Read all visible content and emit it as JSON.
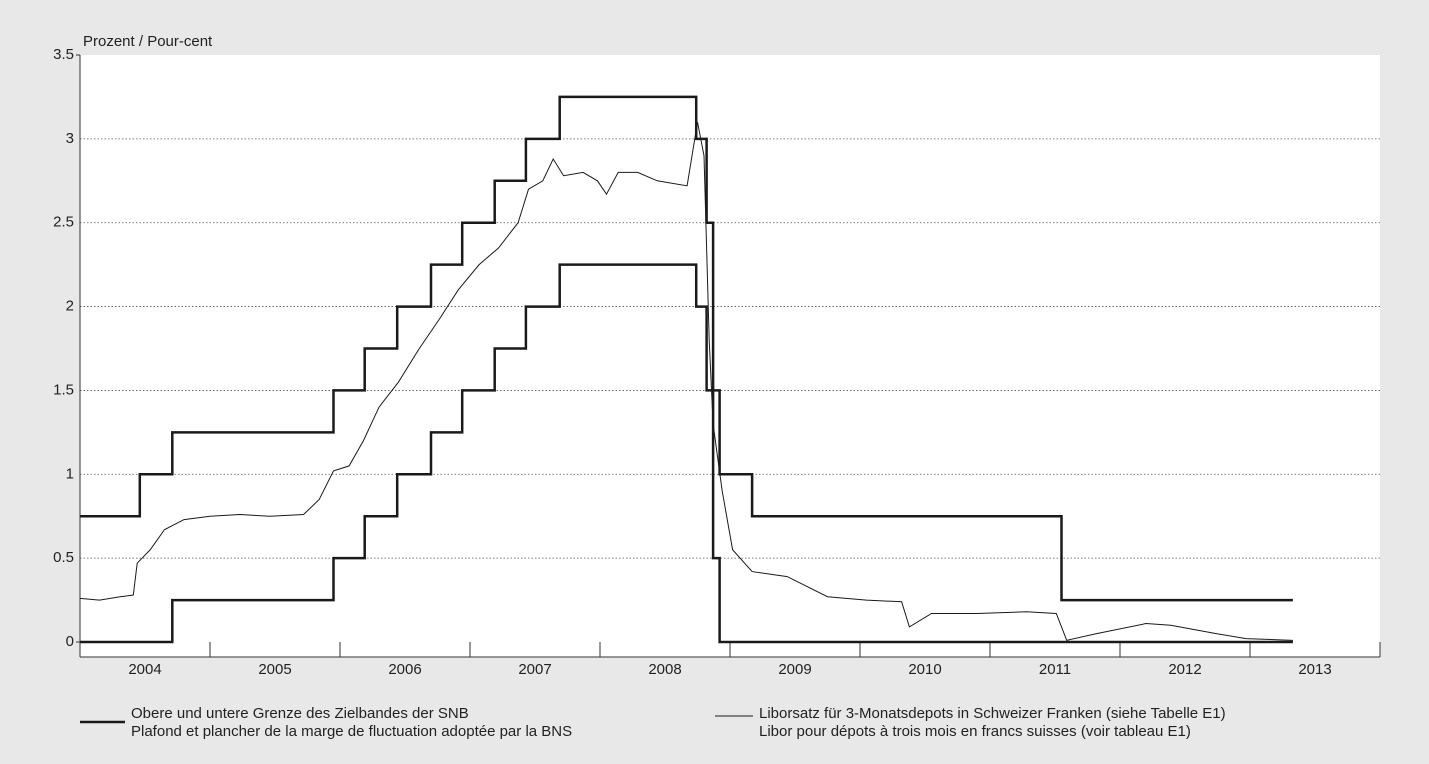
{
  "chart_data": {
    "type": "line",
    "y_label": "Prozent / Pour-cent",
    "xlim": [
      2004,
      2014
    ],
    "xticks": [
      2004,
      2005,
      2006,
      2007,
      2008,
      2009,
      2010,
      2011,
      2012,
      2013
    ],
    "ylim": [
      0,
      3.5
    ],
    "yticks": [
      0,
      0.5,
      1,
      1.5,
      2,
      2.5,
      3,
      3.5
    ],
    "grid": true,
    "series": [
      {
        "name": [
          "Obere und untere Grenze des Zielbandes der SNB",
          "Plafond et plancher de la marge de fluctuation adoptée par la BNS"
        ],
        "color": "#1a1a1a",
        "step": true,
        "x": [
          2004,
          2004.46,
          2004.71,
          2005.95,
          2006.19,
          2006.44,
          2006.7,
          2006.94,
          2007.19,
          2007.43,
          2007.69,
          2008.74,
          2008.82,
          2008.87,
          2008.92,
          2009.17,
          2011.55,
          2013.33
        ],
        "values": [
          0.75,
          1,
          1.25,
          1.5,
          1.75,
          2,
          2.25,
          2.5,
          2.75,
          3,
          3.25,
          3,
          2.5,
          1.5,
          1,
          0.75,
          0.25,
          0.25
        ],
        "lower": [
          0,
          0,
          0.25,
          0.5,
          0.75,
          1,
          1.25,
          1.5,
          1.75,
          2,
          2.25,
          2,
          1.5,
          0.5,
          0,
          0,
          0,
          0
        ]
      },
      {
        "name": [
          "Liborsatz für 3-Monatsdepots in Schweizer Franken (siehe Tabelle E1)",
          "Libor pour dépots à trois mois en francs suisses (voir tableau E1)"
        ],
        "color": "#1a1a1a",
        "step": false,
        "x": [
          2004.0,
          2004.15,
          2004.31,
          2004.41,
          2004.44,
          2004.54,
          2004.65,
          2004.8,
          2005.0,
          2005.23,
          2005.46,
          2005.72,
          2005.84,
          2005.95,
          2006.07,
          2006.18,
          2006.3,
          2006.45,
          2006.61,
          2006.76,
          2006.91,
          2007.07,
          2007.22,
          2007.37,
          2007.45,
          2007.56,
          2007.64,
          2007.72,
          2007.87,
          2007.98,
          2008.05,
          2008.14,
          2008.29,
          2008.44,
          2008.67,
          2008.75,
          2008.8,
          2008.84,
          2008.87,
          2008.94,
          2009.02,
          2009.17,
          2009.44,
          2009.75,
          2010.05,
          2010.32,
          2010.38,
          2010.55,
          2010.9,
          2011.28,
          2011.51,
          2011.59,
          2011.82,
          2012.2,
          2012.39,
          2012.74,
          2012.97,
          2013.33
        ],
        "values": [
          0.26,
          0.25,
          0.27,
          0.28,
          0.47,
          0.55,
          0.67,
          0.73,
          0.75,
          0.76,
          0.75,
          0.76,
          0.85,
          1.02,
          1.05,
          1.2,
          1.4,
          1.55,
          1.75,
          1.92,
          2.1,
          2.25,
          2.35,
          2.5,
          2.7,
          2.75,
          2.88,
          2.78,
          2.8,
          2.75,
          2.67,
          2.8,
          2.8,
          2.75,
          2.72,
          3.1,
          2.9,
          1.8,
          1.3,
          0.9,
          0.55,
          0.42,
          0.39,
          0.27,
          0.25,
          0.24,
          0.09,
          0.17,
          0.17,
          0.18,
          0.17,
          0.01,
          0.05,
          0.11,
          0.1,
          0.05,
          0.02,
          0.01
        ]
      }
    ]
  }
}
